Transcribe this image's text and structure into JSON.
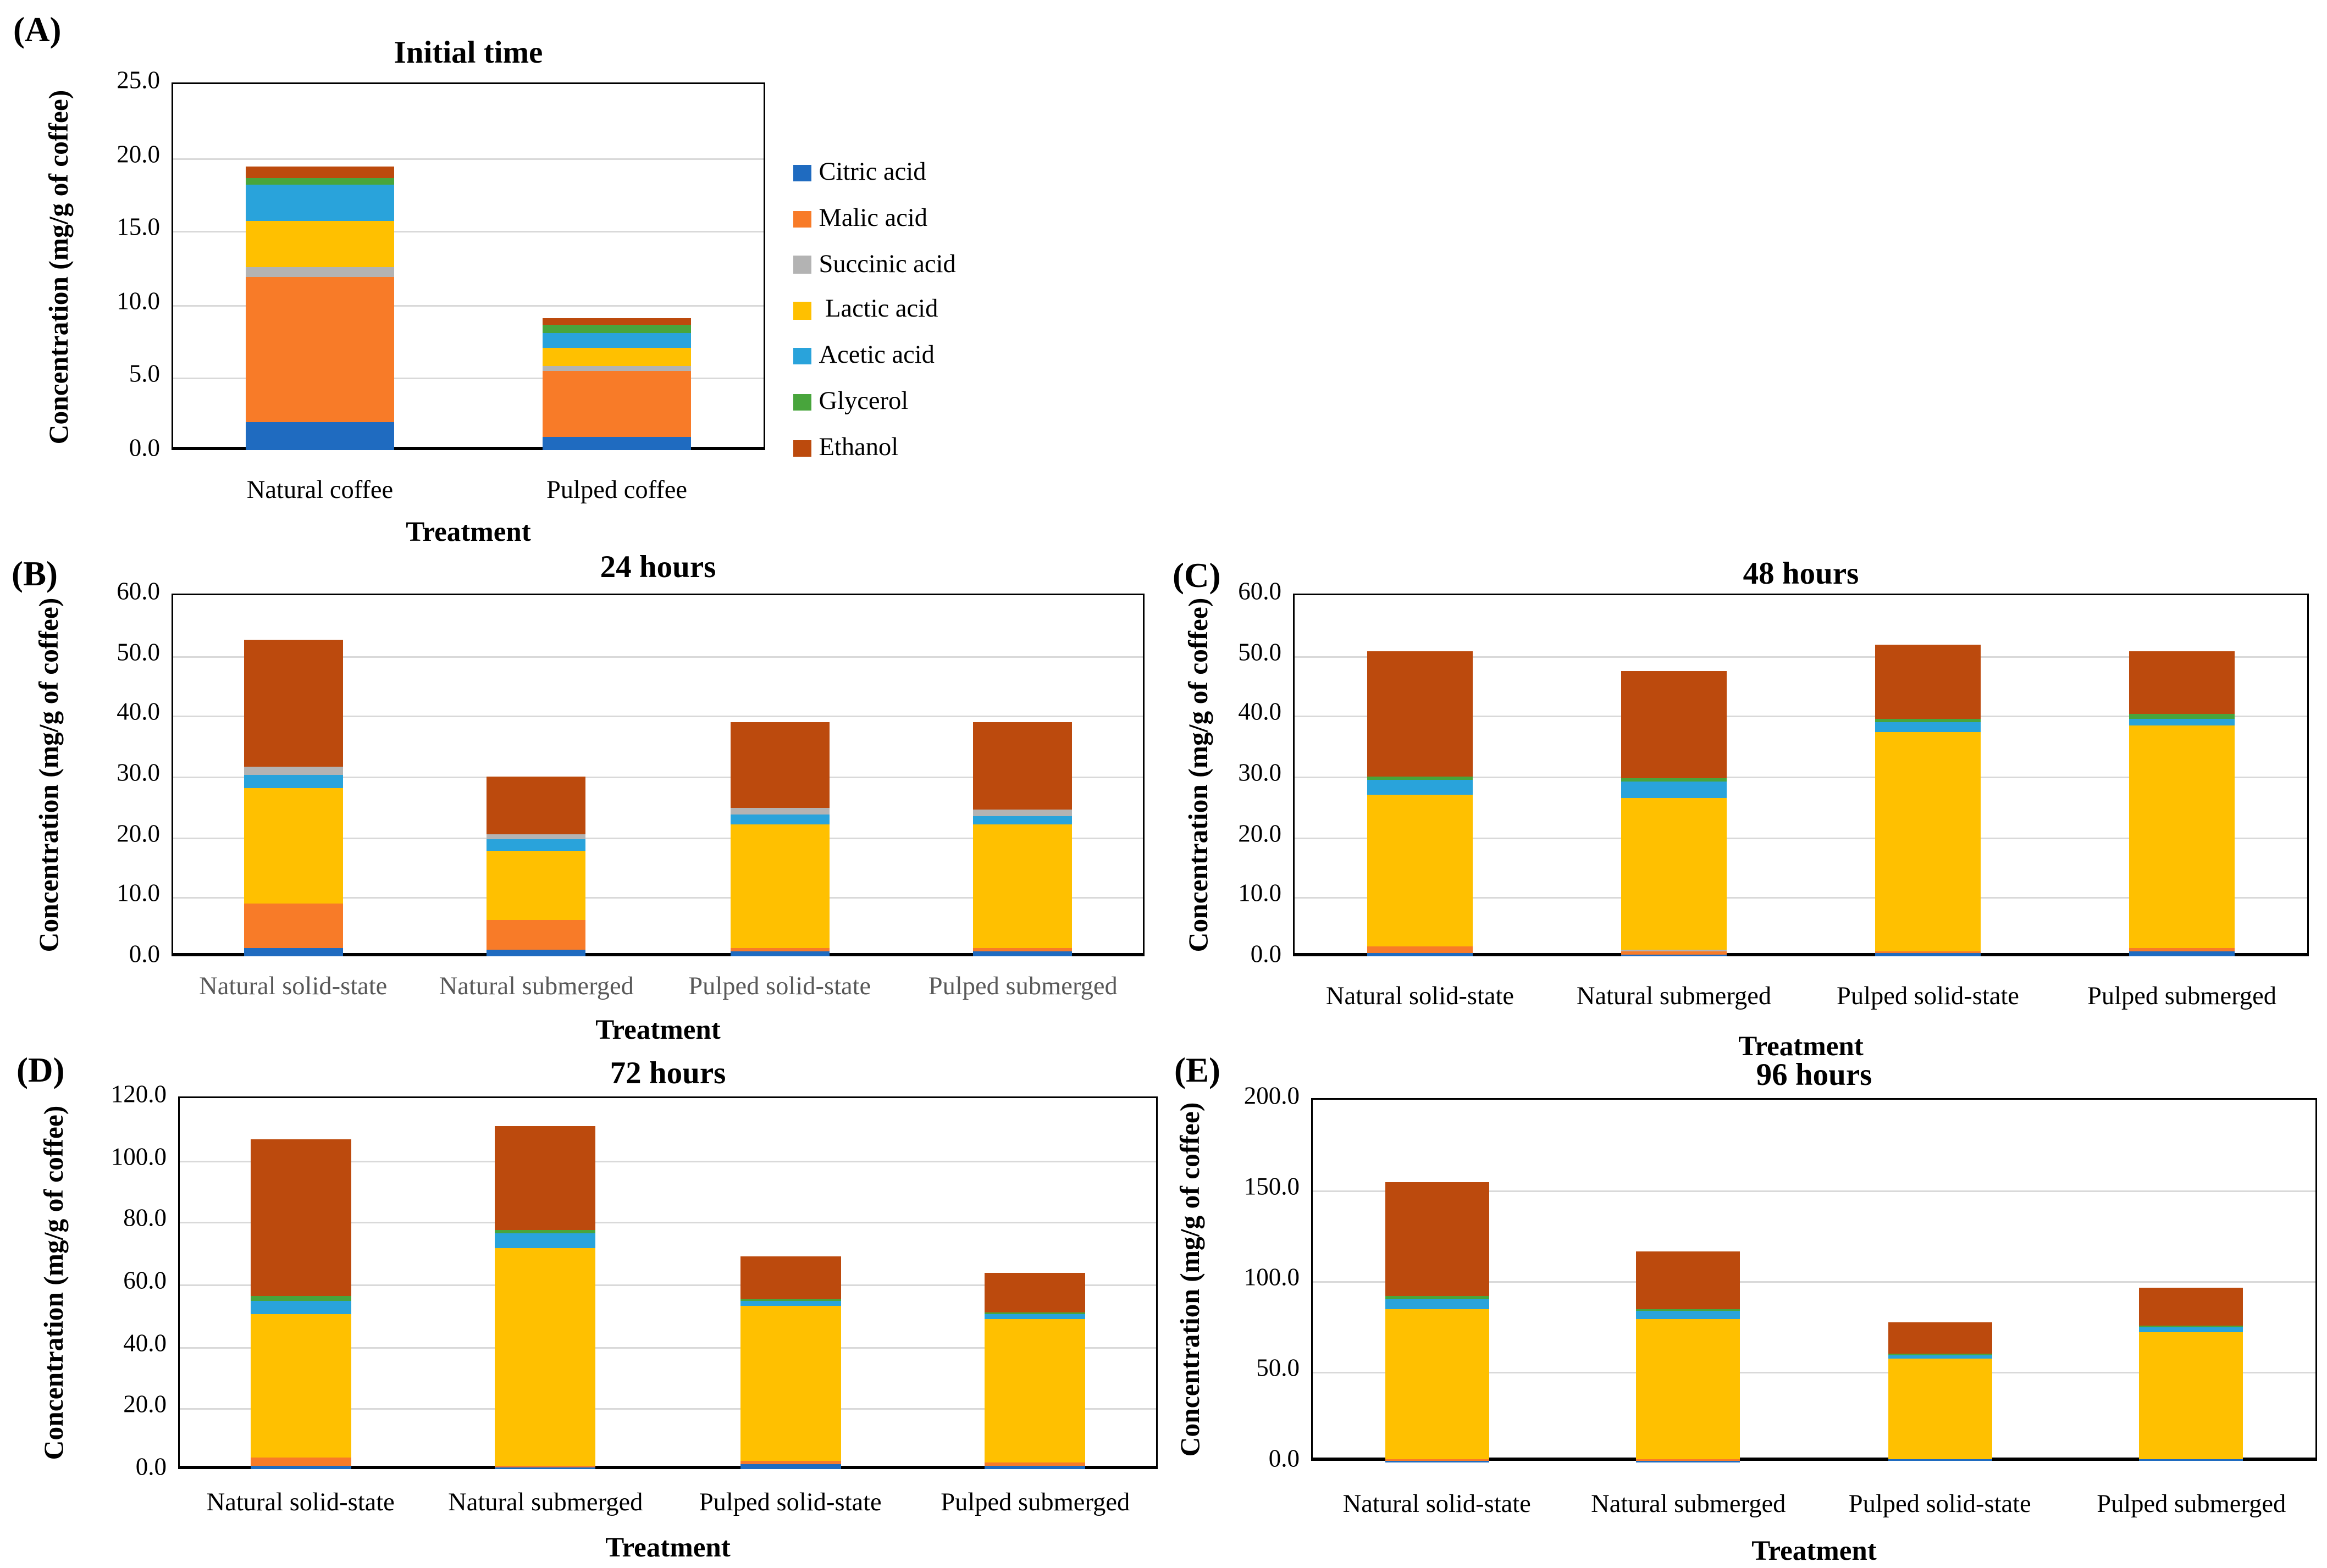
{
  "figure": {
    "description": "Stacked bar charts of organic acids, glycerol and ethanol concentrations during coffee fermentation",
    "ylabel": "Concentration (mg/g of coffee)",
    "xlabel": "Treatment"
  },
  "series_colors": {
    "citric": "#1f6bc0",
    "malic": "#f87b28",
    "succinic": "#b3b3b3",
    "lactic": "#ffc000",
    "acetic": "#29a3db",
    "glycerol": "#48a53c",
    "ethanol": "#bc4a0d"
  },
  "legend": {
    "items": [
      {
        "series": "citric",
        "label": "Citric acid"
      },
      {
        "series": "malic",
        "label": "Malic acid"
      },
      {
        "series": "succinic",
        "label": "Succinic acid"
      },
      {
        "series": "lactic",
        "label": " Lactic acid"
      },
      {
        "series": "acetic",
        "label": "Acetic acid"
      },
      {
        "series": "glycerol",
        "label": "Glycerol"
      },
      {
        "series": "ethanol",
        "label": "Ethanol"
      }
    ]
  },
  "chart_data": [
    {
      "id": "A",
      "panel_label": "(A)",
      "title": "Initial time",
      "type": "bar",
      "stacked": true,
      "ylabel": "Concentration (mg/g of coffee)",
      "xlabel": "Treatment",
      "ylim": [
        0,
        25
      ],
      "ytick_step": 5,
      "grid": true,
      "x_tick_color": "#000000",
      "categories": [
        "Natural coffee",
        "Pulped coffee"
      ],
      "bars": [
        {
          "label": "Natural coffee",
          "segments": [
            [
              "citric",
              1.9
            ],
            [
              "malic",
              9.9
            ],
            [
              "succinic",
              0.6
            ],
            [
              "lactic",
              3.2
            ],
            [
              "acetic",
              2.4
            ],
            [
              "glycerol",
              0.5
            ],
            [
              "ethanol",
              0.8
            ]
          ]
        },
        {
          "label": "Pulped coffee",
          "segments": [
            [
              "citric",
              0.9
            ],
            [
              "malic",
              4.5
            ],
            [
              "succinic",
              0.3
            ],
            [
              "lactic",
              1.3
            ],
            [
              "acetic",
              1.0
            ],
            [
              "glycerol",
              0.5
            ],
            [
              "ethanol",
              0.5
            ]
          ]
        }
      ]
    },
    {
      "id": "B",
      "panel_label": "(B)",
      "title": "24 hours",
      "type": "bar",
      "stacked": true,
      "ylabel": "Concentration (mg/g of coffee)",
      "xlabel": "Treatment",
      "ylim": [
        0,
        60
      ],
      "ytick_step": 10,
      "grid": true,
      "x_tick_color": "#595959",
      "categories": [
        "Natural solid-state",
        "Natural submerged",
        "Pulped solid-state",
        "Pulped submerged"
      ],
      "bars": [
        {
          "label": "Natural solid-state",
          "segments": [
            [
              "citric",
              1.3
            ],
            [
              "malic",
              7.4
            ],
            [
              "lactic",
              19.2
            ],
            [
              "acetic",
              2.2
            ],
            [
              "succinic",
              1.4
            ],
            [
              "ethanol",
              21.0
            ]
          ]
        },
        {
          "label": "Natural submerged",
          "segments": [
            [
              "citric",
              1.1
            ],
            [
              "malic",
              5.0
            ],
            [
              "lactic",
              11.4
            ],
            [
              "acetic",
              1.8
            ],
            [
              "succinic",
              0.9
            ],
            [
              "ethanol",
              9.6
            ]
          ]
        },
        {
          "label": "Pulped solid-state",
          "segments": [
            [
              "citric",
              0.9
            ],
            [
              "malic",
              0.4
            ],
            [
              "lactic",
              20.5
            ],
            [
              "acetic",
              1.6
            ],
            [
              "succinic",
              1.1
            ],
            [
              "ethanol",
              14.1
            ]
          ]
        },
        {
          "label": "Pulped submerged",
          "segments": [
            [
              "citric",
              0.9
            ],
            [
              "malic",
              0.5
            ],
            [
              "lactic",
              20.3
            ],
            [
              "acetic",
              1.6
            ],
            [
              "succinic",
              1.1
            ],
            [
              "ethanol",
              14.2
            ]
          ]
        }
      ]
    },
    {
      "id": "C",
      "panel_label": "(C)",
      "title": "48 hours",
      "type": "bar",
      "stacked": true,
      "ylabel": "Concentration (mg/g of coffee)",
      "xlabel": "Treatment",
      "ylim": [
        0,
        60
      ],
      "ytick_step": 10,
      "grid": true,
      "x_tick_color": "#000000",
      "categories": [
        "Natural solid-state",
        "Natural submerged",
        "Pulped solid-state",
        "Pulped submerged"
      ],
      "bars": [
        {
          "label": "Natural solid-state",
          "segments": [
            [
              "citric",
              0.5
            ],
            [
              "malic",
              1.2
            ],
            [
              "lactic",
              24.9
            ],
            [
              "acetic",
              2.5
            ],
            [
              "glycerol",
              0.6
            ],
            [
              "ethanol",
              20.8
            ]
          ]
        },
        {
          "label": "Natural submerged",
          "segments": [
            [
              "citric",
              0.3
            ],
            [
              "malic",
              0.5
            ],
            [
              "succinic",
              0.3
            ],
            [
              "lactic",
              25.2
            ],
            [
              "acetic",
              2.5
            ],
            [
              "glycerol",
              0.6
            ],
            [
              "ethanol",
              17.9
            ]
          ]
        },
        {
          "label": "Pulped solid-state",
          "segments": [
            [
              "citric",
              0.6
            ],
            [
              "malic",
              0.3
            ],
            [
              "lactic",
              36.3
            ],
            [
              "acetic",
              1.5
            ],
            [
              "glycerol",
              0.6
            ],
            [
              "ethanol",
              12.2
            ]
          ]
        },
        {
          "label": "Pulped submerged",
          "segments": [
            [
              "citric",
              0.9
            ],
            [
              "malic",
              0.5
            ],
            [
              "lactic",
              36.7
            ],
            [
              "acetic",
              1.3
            ],
            [
              "glycerol",
              0.6
            ],
            [
              "ethanol",
              10.5
            ]
          ]
        }
      ]
    },
    {
      "id": "D",
      "panel_label": "(D)",
      "title": "72 hours",
      "type": "bar",
      "stacked": true,
      "ylabel": "Concentration (mg/g of coffee)",
      "xlabel": "Treatment",
      "ylim": [
        0,
        120
      ],
      "ytick_step": 20,
      "grid": true,
      "x_tick_color": "#000000",
      "categories": [
        "Natural solid-state",
        "Natural submerged",
        "Pulped solid-state",
        "Pulped submerged"
      ],
      "bars": [
        {
          "label": "Natural solid-state",
          "segments": [
            [
              "citric",
              1.1
            ],
            [
              "malic",
              2.6
            ],
            [
              "lactic",
              46.4
            ],
            [
              "acetic",
              4.1
            ],
            [
              "glycerol",
              1.3
            ],
            [
              "ethanol",
              50.7
            ]
          ]
        },
        {
          "label": "Natural submerged",
          "segments": [
            [
              "citric",
              0.5
            ],
            [
              "malic",
              0.5
            ],
            [
              "lactic",
              70.0
            ],
            [
              "acetic",
              5.1
            ],
            [
              "glycerol",
              1.0
            ],
            [
              "ethanol",
              33.4
            ]
          ]
        },
        {
          "label": "Pulped solid-state",
          "segments": [
            [
              "citric",
              1.5
            ],
            [
              "malic",
              0.9
            ],
            [
              "lactic",
              50.0
            ],
            [
              "acetic",
              1.8
            ],
            [
              "glycerol",
              0.7
            ],
            [
              "ethanol",
              13.6
            ]
          ]
        },
        {
          "label": "Pulped submerged",
          "segments": [
            [
              "citric",
              1.3
            ],
            [
              "malic",
              0.9
            ],
            [
              "lactic",
              46.2
            ],
            [
              "acetic",
              1.4
            ],
            [
              "glycerol",
              0.8
            ],
            [
              "ethanol",
              12.4
            ]
          ]
        }
      ]
    },
    {
      "id": "E",
      "panel_label": "(E)",
      "title": "96 hours",
      "type": "bar",
      "stacked": true,
      "ylabel": "Concentration (mg/g of coffee)",
      "xlabel": "Treatment",
      "ylim": [
        0,
        200
      ],
      "ytick_step": 50,
      "grid": true,
      "x_tick_color": "#000000",
      "categories": [
        "Natural solid-state",
        "Natural submerged",
        "Pulped solid-state",
        "Pulped submerged"
      ],
      "bars": [
        {
          "label": "Natural solid-state",
          "segments": [
            [
              "citric",
              0.3
            ],
            [
              "malic",
              0.8
            ],
            [
              "lactic",
              82.5
            ],
            [
              "acetic",
              5.5
            ],
            [
              "glycerol",
              1.5
            ],
            [
              "ethanol",
              62.9
            ]
          ]
        },
        {
          "label": "Natural submerged",
          "segments": [
            [
              "citric",
              0.3
            ],
            [
              "malic",
              0.3
            ],
            [
              "lactic",
              77.5
            ],
            [
              "acetic",
              4.5
            ],
            [
              "glycerol",
              1.3
            ],
            [
              "ethanol",
              31.6
            ]
          ]
        },
        {
          "label": "Pulped solid-state",
          "segments": [
            [
              "citric",
              0.8
            ],
            [
              "malic",
              0.3
            ],
            [
              "lactic",
              55.0
            ],
            [
              "acetic",
              2.0
            ],
            [
              "glycerol",
              1.0
            ],
            [
              "ethanol",
              17.4
            ]
          ]
        },
        {
          "label": "Pulped submerged",
          "segments": [
            [
              "citric",
              0.8
            ],
            [
              "malic",
              0.3
            ],
            [
              "lactic",
              70.0
            ],
            [
              "acetic",
              2.8
            ],
            [
              "glycerol",
              0.8
            ],
            [
              "ethanol",
              21.0
            ]
          ]
        }
      ]
    }
  ]
}
